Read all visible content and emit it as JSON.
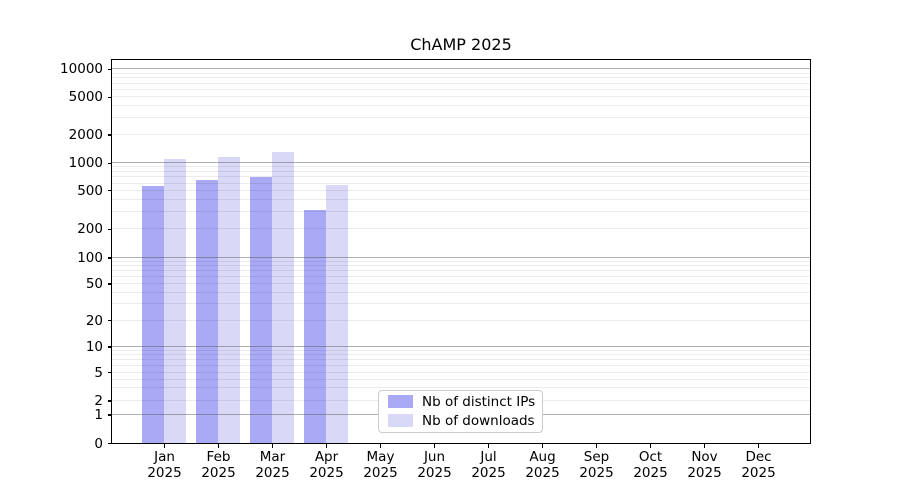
{
  "title": "ChAMP 2025",
  "chart_data": {
    "type": "bar",
    "title": "ChAMP 2025",
    "yscale": "symlog",
    "grid": true,
    "legend_position": "lower center",
    "categories": [
      "Jan 2025",
      "Feb 2025",
      "Mar 2025",
      "Apr 2025",
      "May 2025",
      "Jun 2025",
      "Jul 2025",
      "Aug 2025",
      "Sep 2025",
      "Oct 2025",
      "Nov 2025",
      "Dec 2025"
    ],
    "series": [
      {
        "name": "Nb of distinct IPs",
        "color": "#a9a9f5",
        "values": [
          560,
          650,
          700,
          310,
          0,
          0,
          0,
          0,
          0,
          0,
          0,
          0
        ]
      },
      {
        "name": "Nb of downloads",
        "color": "#d9d9f7",
        "values": [
          1090,
          1150,
          1300,
          575,
          0,
          0,
          0,
          0,
          0,
          0,
          0,
          0
        ]
      }
    ],
    "y_ticks": [
      0,
      1,
      2,
      5,
      10,
      20,
      50,
      100,
      200,
      500,
      1000,
      2000,
      5000,
      10000
    ],
    "ylim": [
      0,
      13000
    ]
  }
}
